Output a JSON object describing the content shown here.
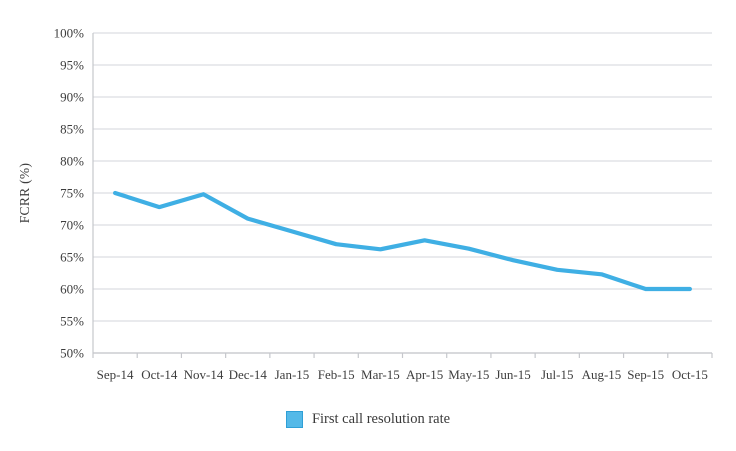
{
  "chart_data": {
    "type": "line",
    "title": "",
    "xlabel": "",
    "ylabel": "FCRR (%)",
    "categories": [
      "Sep-14",
      "Oct-14",
      "Nov-14",
      "Dec-14",
      "Jan-15",
      "Feb-15",
      "Mar-15",
      "Apr-15",
      "May-15",
      "Jun-15",
      "Jul-15",
      "Aug-15",
      "Sep-15",
      "Oct-15"
    ],
    "series": [
      {
        "name": "First call resolution rate",
        "values": [
          75,
          72.8,
          74.8,
          71,
          69,
          67,
          66.2,
          67.6,
          66.3,
          64.5,
          63,
          62.3,
          60,
          60
        ]
      }
    ],
    "ylim": [
      50,
      100
    ],
    "ytick_step": 5,
    "ytick_labels": [
      "100%",
      "95%",
      "90%",
      "85%",
      "80%",
      "75%",
      "70%",
      "65%",
      "60%",
      "55%",
      "50%"
    ],
    "grid": "horizontal",
    "legend_position": "bottom"
  },
  "colors": {
    "line": "#3fafe4",
    "legend_fill": "#54b9e8",
    "legend_border": "#2f9fd6",
    "gridline": "#dcdde2",
    "axis": "#c6c7cc",
    "tick_text": "#3d3d3d",
    "legend_text": "#3a3a3a"
  }
}
